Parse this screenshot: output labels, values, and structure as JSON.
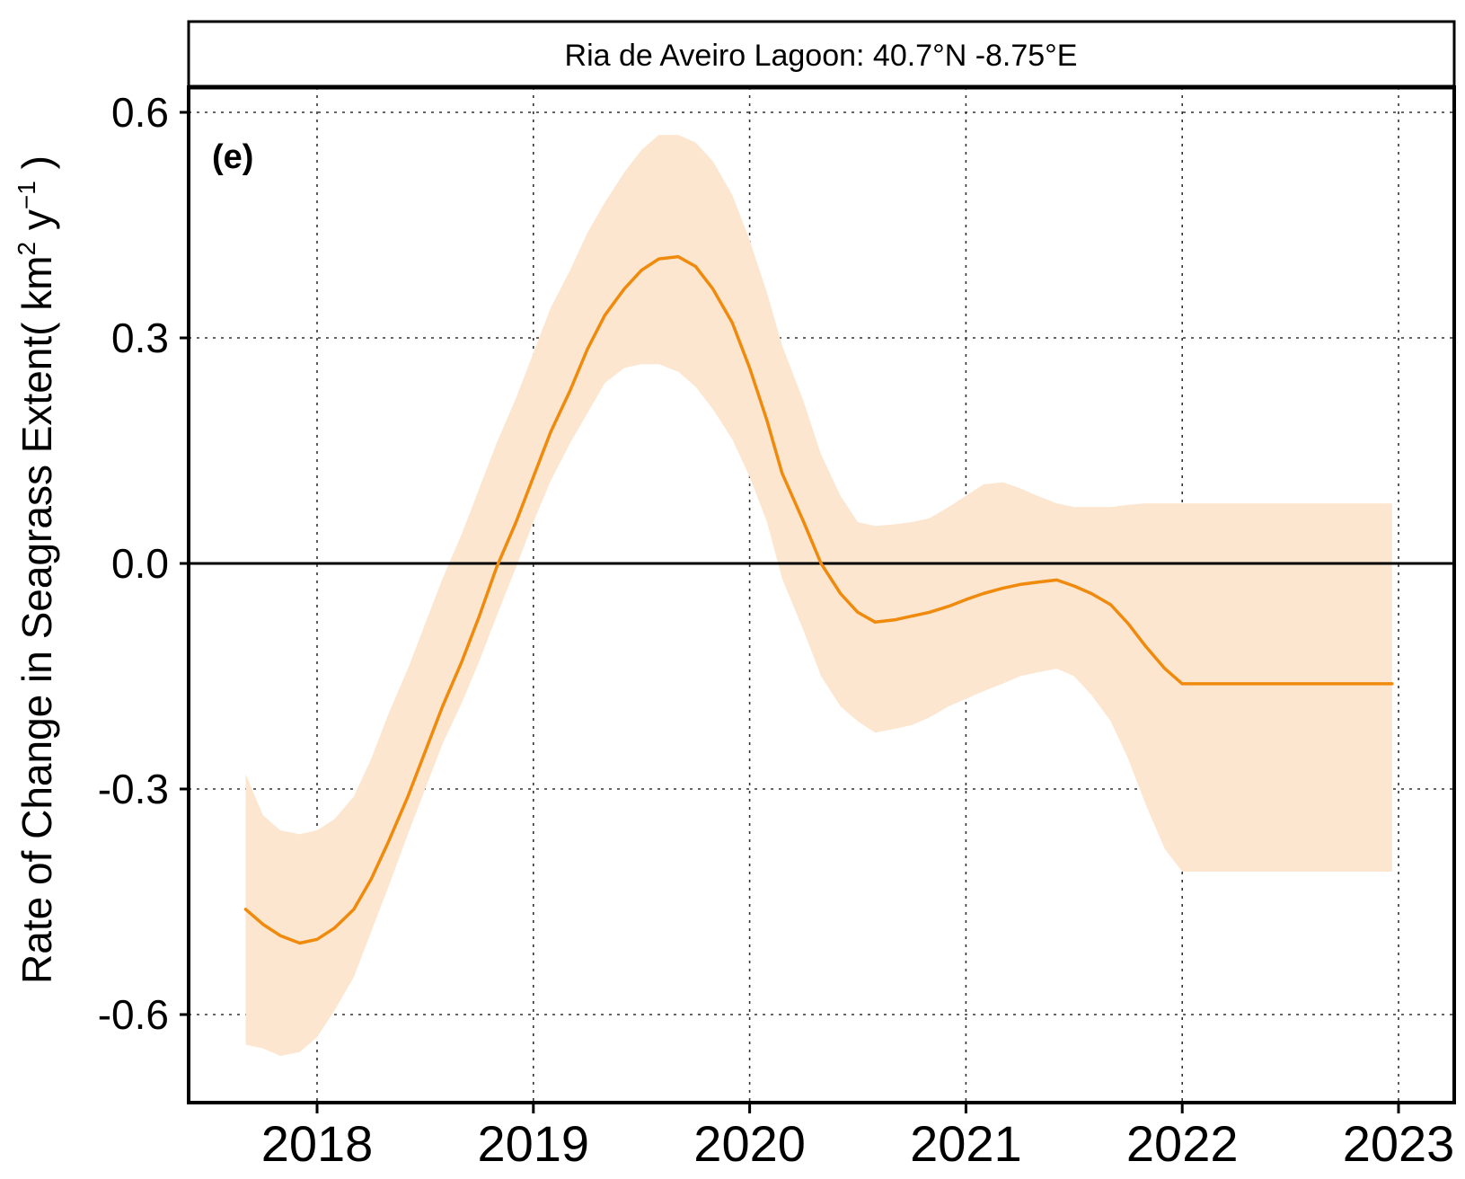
{
  "chart_data": {
    "type": "line",
    "strip_title": "Ria de Aveiro Lagoon:  40.7°N -8.75°E",
    "panel_label": "(e)",
    "ylabel": "Rate of Change in Seagrass Extent",
    "ylabel_units_open": "( km",
    "ylabel_units_sup1": "2",
    "ylabel_units_mid": " y",
    "ylabel_units_sup2": "−1",
    "ylabel_units_close": " )",
    "xlabel": "",
    "x_ticks": [
      2018,
      2019,
      2020,
      2021,
      2022,
      2023
    ],
    "x_tick_labels": [
      "2018",
      "2019",
      "2020",
      "2021",
      "2022",
      "2023"
    ],
    "y_ticks": [
      -0.6,
      -0.3,
      0.0,
      0.3,
      0.6
    ],
    "y_tick_labels": [
      "-0.6",
      "-0.3",
      "0.0",
      "0.3",
      "0.6"
    ],
    "xlim": [
      2017.4,
      2023.25
    ],
    "ylim": [
      -0.71,
      0.63
    ],
    "grid": true,
    "zero_line": true,
    "line_color": "#ef8a0c",
    "band_color": "#fde6cf",
    "series": [
      {
        "x": [
          2017.67,
          2017.75,
          2017.83,
          2017.92,
          2018.0,
          2018.08,
          2018.17,
          2018.25,
          2018.33,
          2018.42,
          2018.5,
          2018.58,
          2018.67,
          2018.75,
          2018.83,
          2018.92,
          2019.0,
          2019.08,
          2019.17,
          2019.25,
          2019.33,
          2019.42,
          2019.5,
          2019.58,
          2019.67,
          2019.75,
          2019.83,
          2019.92,
          2020.0,
          2020.08,
          2020.15,
          2020.25,
          2020.33,
          2020.42,
          2020.5,
          2020.58,
          2020.67,
          2020.75,
          2020.83,
          2020.92,
          2021.0,
          2021.08,
          2021.17,
          2021.25,
          2021.33,
          2021.42,
          2021.5,
          2021.58,
          2021.67,
          2021.75,
          2021.83,
          2021.92,
          2022.0,
          2022.08,
          2022.17,
          2022.25,
          2022.33,
          2022.42,
          2022.5,
          2022.58,
          2022.67,
          2022.75,
          2022.83,
          2022.92,
          2022.97
        ],
        "y": [
          -0.46,
          -0.48,
          -0.495,
          -0.505,
          -0.5,
          -0.485,
          -0.46,
          -0.42,
          -0.37,
          -0.31,
          -0.25,
          -0.19,
          -0.13,
          -0.07,
          -0.005,
          0.055,
          0.115,
          0.175,
          0.23,
          0.285,
          0.33,
          0.365,
          0.39,
          0.405,
          0.408,
          0.395,
          0.365,
          0.32,
          0.26,
          0.19,
          0.12,
          0.055,
          0.0,
          -0.04,
          -0.065,
          -0.078,
          -0.075,
          -0.07,
          -0.065,
          -0.057,
          -0.048,
          -0.04,
          -0.033,
          -0.028,
          -0.025,
          -0.022,
          -0.03,
          -0.04,
          -0.055,
          -0.08,
          -0.11,
          -0.14,
          -0.16,
          -0.16,
          -0.16,
          -0.16,
          -0.16,
          -0.16,
          -0.16,
          -0.16,
          -0.16,
          -0.16,
          -0.16,
          -0.16,
          -0.16
        ],
        "lower": [
          -0.64,
          -0.645,
          -0.655,
          -0.65,
          -0.63,
          -0.595,
          -0.55,
          -0.49,
          -0.43,
          -0.36,
          -0.3,
          -0.24,
          -0.185,
          -0.13,
          -0.07,
          -0.005,
          0.055,
          0.11,
          0.16,
          0.2,
          0.24,
          0.26,
          0.265,
          0.265,
          0.255,
          0.235,
          0.205,
          0.165,
          0.115,
          0.055,
          -0.02,
          -0.09,
          -0.15,
          -0.19,
          -0.21,
          -0.225,
          -0.22,
          -0.215,
          -0.205,
          -0.19,
          -0.18,
          -0.17,
          -0.16,
          -0.15,
          -0.145,
          -0.14,
          -0.15,
          -0.175,
          -0.21,
          -0.26,
          -0.32,
          -0.38,
          -0.41,
          -0.41,
          -0.41,
          -0.41,
          -0.41,
          -0.41,
          -0.41,
          -0.41,
          -0.41,
          -0.41,
          -0.41,
          -0.41,
          -0.41
        ],
        "upper": [
          -0.28,
          -0.335,
          -0.355,
          -0.36,
          -0.355,
          -0.34,
          -0.31,
          -0.26,
          -0.2,
          -0.14,
          -0.08,
          -0.02,
          0.04,
          0.1,
          0.16,
          0.22,
          0.28,
          0.34,
          0.39,
          0.44,
          0.48,
          0.52,
          0.55,
          0.57,
          0.57,
          0.56,
          0.535,
          0.49,
          0.43,
          0.36,
          0.29,
          0.215,
          0.145,
          0.09,
          0.055,
          0.05,
          0.052,
          0.055,
          0.06,
          0.075,
          0.09,
          0.105,
          0.108,
          0.1,
          0.09,
          0.08,
          0.075,
          0.075,
          0.075,
          0.078,
          0.08,
          0.08,
          0.08,
          0.08,
          0.08,
          0.08,
          0.08,
          0.08,
          0.08,
          0.08,
          0.08,
          0.08,
          0.08,
          0.08,
          0.08
        ]
      }
    ]
  }
}
